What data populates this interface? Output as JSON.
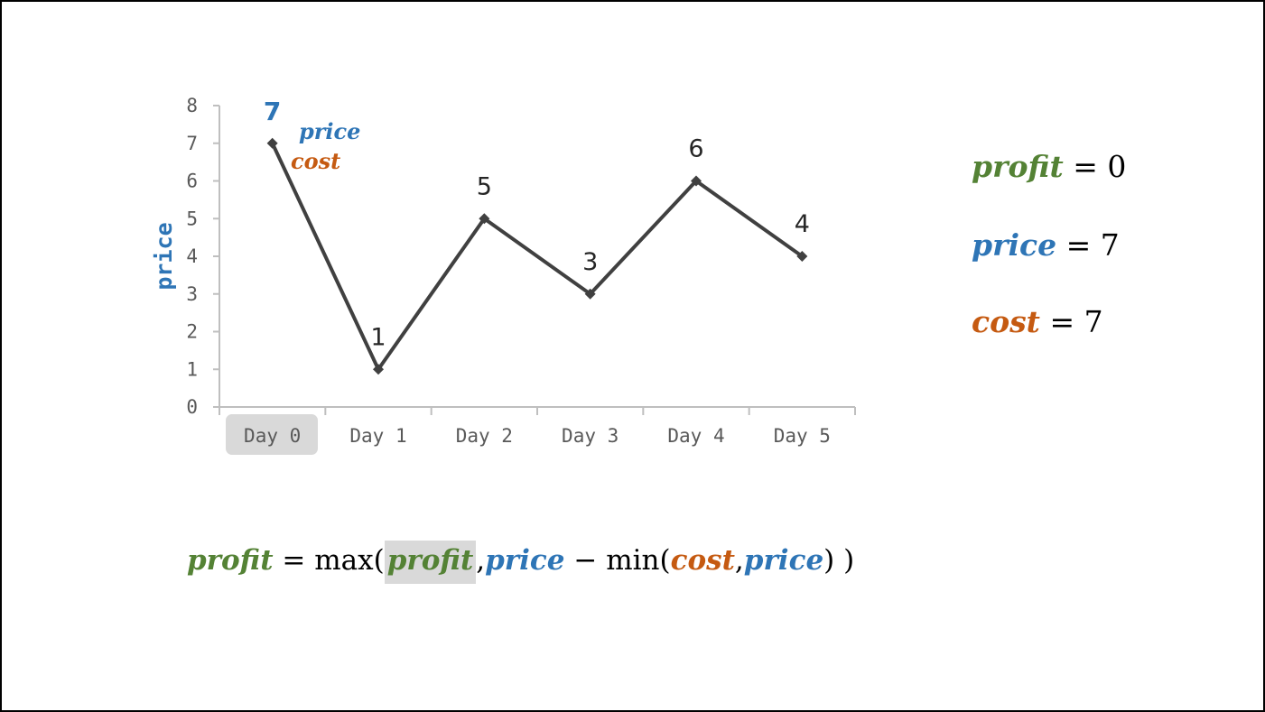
{
  "chart_data": {
    "type": "line",
    "categories": [
      "Day 0",
      "Day 1",
      "Day 2",
      "Day 3",
      "Day 4",
      "Day 5"
    ],
    "values": [
      7,
      1,
      5,
      3,
      6,
      4
    ],
    "data_labels": [
      "7",
      "1",
      "5",
      "3",
      "6",
      "4"
    ],
    "ylabel": "price",
    "xlabel": "",
    "ylim": [
      0,
      8
    ],
    "yticks": [
      "0",
      "1",
      "2",
      "3",
      "4",
      "5",
      "6",
      "7",
      "8"
    ],
    "highlight_index": 0,
    "line_color": "#404040",
    "annotations": {
      "price": "price",
      "cost": "cost"
    }
  },
  "variables": {
    "profit": {
      "name": "profit",
      "value": "0"
    },
    "price": {
      "name": "price",
      "value": "7"
    },
    "cost": {
      "name": "cost",
      "value": "7"
    }
  },
  "formula": {
    "lhs": "profit",
    "eq": "=",
    "max_fn": "max(",
    "arg1": "profit",
    "comma": ",",
    "arg2": "price",
    "minus": "−",
    "min_fn": "min(",
    "arg3": "cost",
    "arg4": "price",
    "close_inner": ")",
    "close_outer": ")"
  },
  "colors": {
    "profit": "#548235",
    "price": "#2e75b6",
    "cost": "#c55a11",
    "highlight": "#d9d9d9"
  }
}
